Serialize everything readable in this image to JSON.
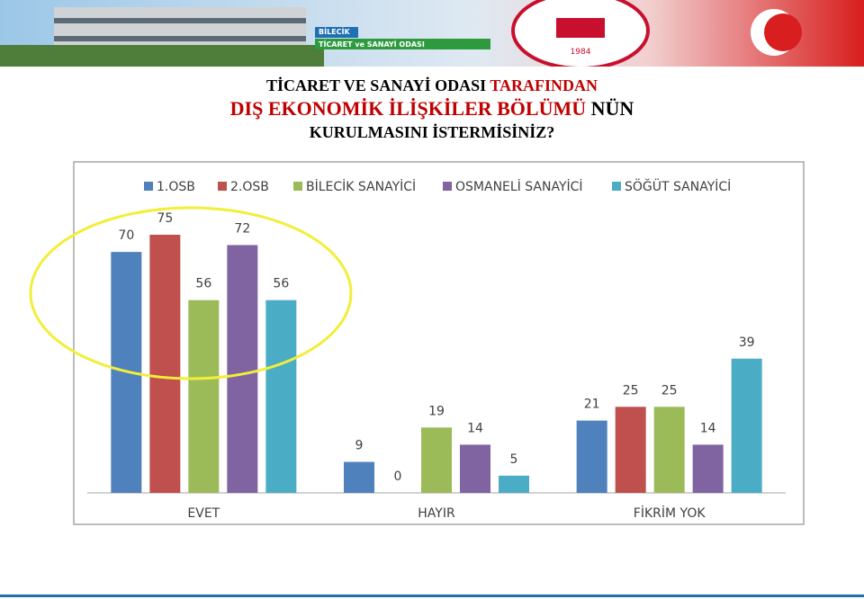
{
  "header": {
    "banner_city": "BİLECİK",
    "banner_org": "TİCARET ve SANAYİ ODASI",
    "logo_year": "1984"
  },
  "title_lines": [
    [
      {
        "text": "TİCARET VE SANAYİ ODASI ",
        "color": "#000000"
      },
      {
        "text": "TARAFINDAN",
        "color": "#c00000"
      }
    ],
    [
      {
        "text": "DIŞ EKONOMİK İLİŞKİLER BÖLÜMÜ",
        "color": "#c00000"
      },
      {
        "text": " NÜN",
        "color": "#000000"
      }
    ],
    [
      {
        "text": "KURULMASINI İSTERMİSİNİZ?",
        "color": "#000000"
      }
    ]
  ],
  "chart_data": {
    "type": "bar",
    "categories": [
      "EVET",
      "HAYIR",
      "FİKRİM YOK"
    ],
    "series": [
      {
        "name": "1.OSB",
        "color": "#4f81bd",
        "values": [
          70,
          9,
          21
        ]
      },
      {
        "name": "2.OSB",
        "color": "#c0504d",
        "values": [
          75,
          0,
          25
        ]
      },
      {
        "name": "BİLECİK SANAYİCİ",
        "color": "#9bbb59",
        "values": [
          56,
          19,
          25
        ]
      },
      {
        "name": "OSMANELİ SANAYİCİ",
        "color": "#8064a2",
        "values": [
          72,
          14,
          14
        ]
      },
      {
        "name": "SÖĞÜT SANAYİCİ",
        "color": "#4bacc6",
        "values": [
          56,
          5,
          39
        ]
      }
    ],
    "legend": "top"
  }
}
